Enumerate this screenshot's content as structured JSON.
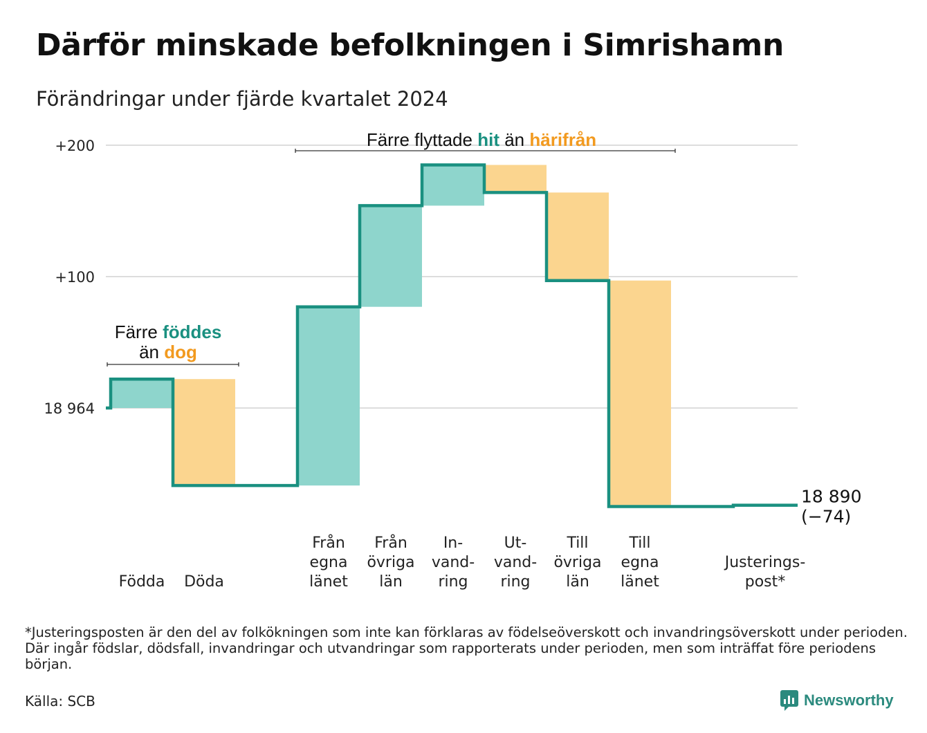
{
  "title": "Därför minskade befolkningen i Simrishamn",
  "subtitle": "Förändringar under fjärde kvartalet 2024",
  "footnote": "*Justeringsposten är den del av folkökningen som inte kan förklaras av födelseöverskott och invandringsöverskott under perioden. Där ingår födslar, dödsfall, invandringar och utvandringar som rapporterats under perioden, men som inträffat före periodens början.",
  "source": "Källa: SCB",
  "brand": "Newsworthy",
  "colors": {
    "increase_fill": "#8ed5cc",
    "decrease_fill": "#fbd58f",
    "line": "#1a9080",
    "hit_text": "#1a9080",
    "away_text": "#f29a1f",
    "grid": "#dddddd"
  },
  "annotations": {
    "births_deaths": {
      "line1_prefix": "Färre",
      "line1_hit": "föddes",
      "line2_prefix": "än",
      "line2_away": "dog"
    },
    "migration": {
      "prefix": "Färre flyttade",
      "hit": "hit",
      "middle": "än",
      "away": "härifrån"
    }
  },
  "chart_data": {
    "type": "waterfall",
    "start_value": 18964,
    "end_value": 18890,
    "end_label": "18 890",
    "end_change_label": "(−74)",
    "ylim": [
      -78,
      212
    ],
    "yticks": [
      {
        "value": 0,
        "label": "18 964"
      },
      {
        "value": 100,
        "label": "+100"
      },
      {
        "value": 200,
        "label": "+200"
      }
    ],
    "grid": true,
    "series": [
      {
        "label_lines": [
          "Födda"
        ],
        "change": 22
      },
      {
        "label_lines": [
          "Döda"
        ],
        "change": -81
      },
      {
        "label_lines": [
          "Från",
          "egna",
          "länet"
        ],
        "change": 136
      },
      {
        "label_lines": [
          "Från",
          "övriga",
          "län"
        ],
        "change": 77
      },
      {
        "label_lines": [
          "In-",
          "vand-",
          "ring"
        ],
        "change": 31
      },
      {
        "label_lines": [
          "Ut-",
          "vand-",
          "ring"
        ],
        "change": -21
      },
      {
        "label_lines": [
          "Till",
          "övriga",
          "län"
        ],
        "change": -67
      },
      {
        "label_lines": [
          "Till",
          "egna",
          "länet"
        ],
        "change": -172
      },
      {
        "label_lines": [
          "Justerings-",
          "post*"
        ],
        "change": 1
      }
    ]
  }
}
